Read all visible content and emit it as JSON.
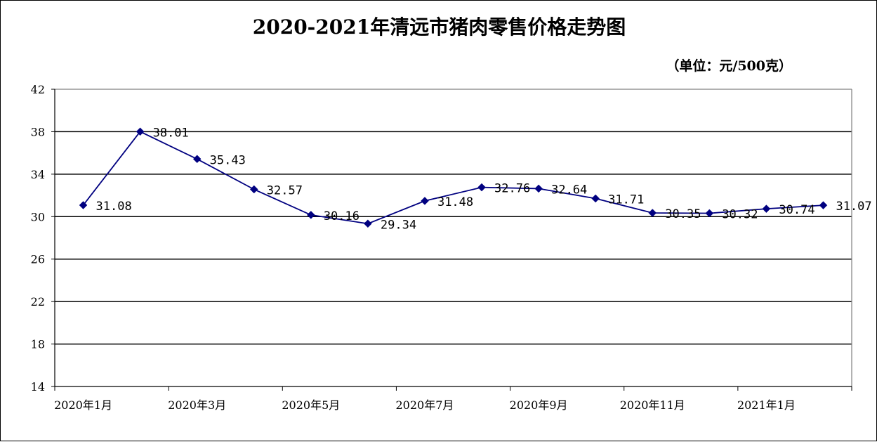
{
  "chart_data": {
    "type": "line",
    "title": "2020-2021年清远市猪肉零售价格走势图",
    "unit": "（单位：元/500克）",
    "x": [
      "2020年1月",
      "2020年2月",
      "2020年3月",
      "2020年4月",
      "2020年5月",
      "2020年6月",
      "2020年7月",
      "2020年8月",
      "2020年9月",
      "2020年10月",
      "2020年11月",
      "2020年12月",
      "2021年1月",
      "2021年2月"
    ],
    "x_tick_labels": [
      "2020年1月",
      "2020年3月",
      "2020年5月",
      "2020年7月",
      "2020年9月",
      "2020年11月",
      "2021年1月"
    ],
    "y_ticks": [
      "14",
      "18",
      "22",
      "26",
      "30",
      "34",
      "38",
      "42"
    ],
    "ylim": [
      14,
      42
    ],
    "grid": true,
    "legend": "none",
    "series": [
      {
        "values": [
          31.08,
          38.01,
          35.43,
          32.57,
          30.16,
          29.34,
          31.48,
          32.76,
          32.64,
          31.71,
          30.35,
          30.32,
          30.74,
          31.07
        ],
        "labels": [
          "31.08",
          "38.01",
          "35.43",
          "32.57",
          "30.16",
          "29.34",
          "31.48",
          "32.76",
          "32.64",
          "31.71",
          "30.35",
          "30.32",
          "30.74",
          "31.07"
        ],
        "color": "#000080"
      }
    ]
  }
}
